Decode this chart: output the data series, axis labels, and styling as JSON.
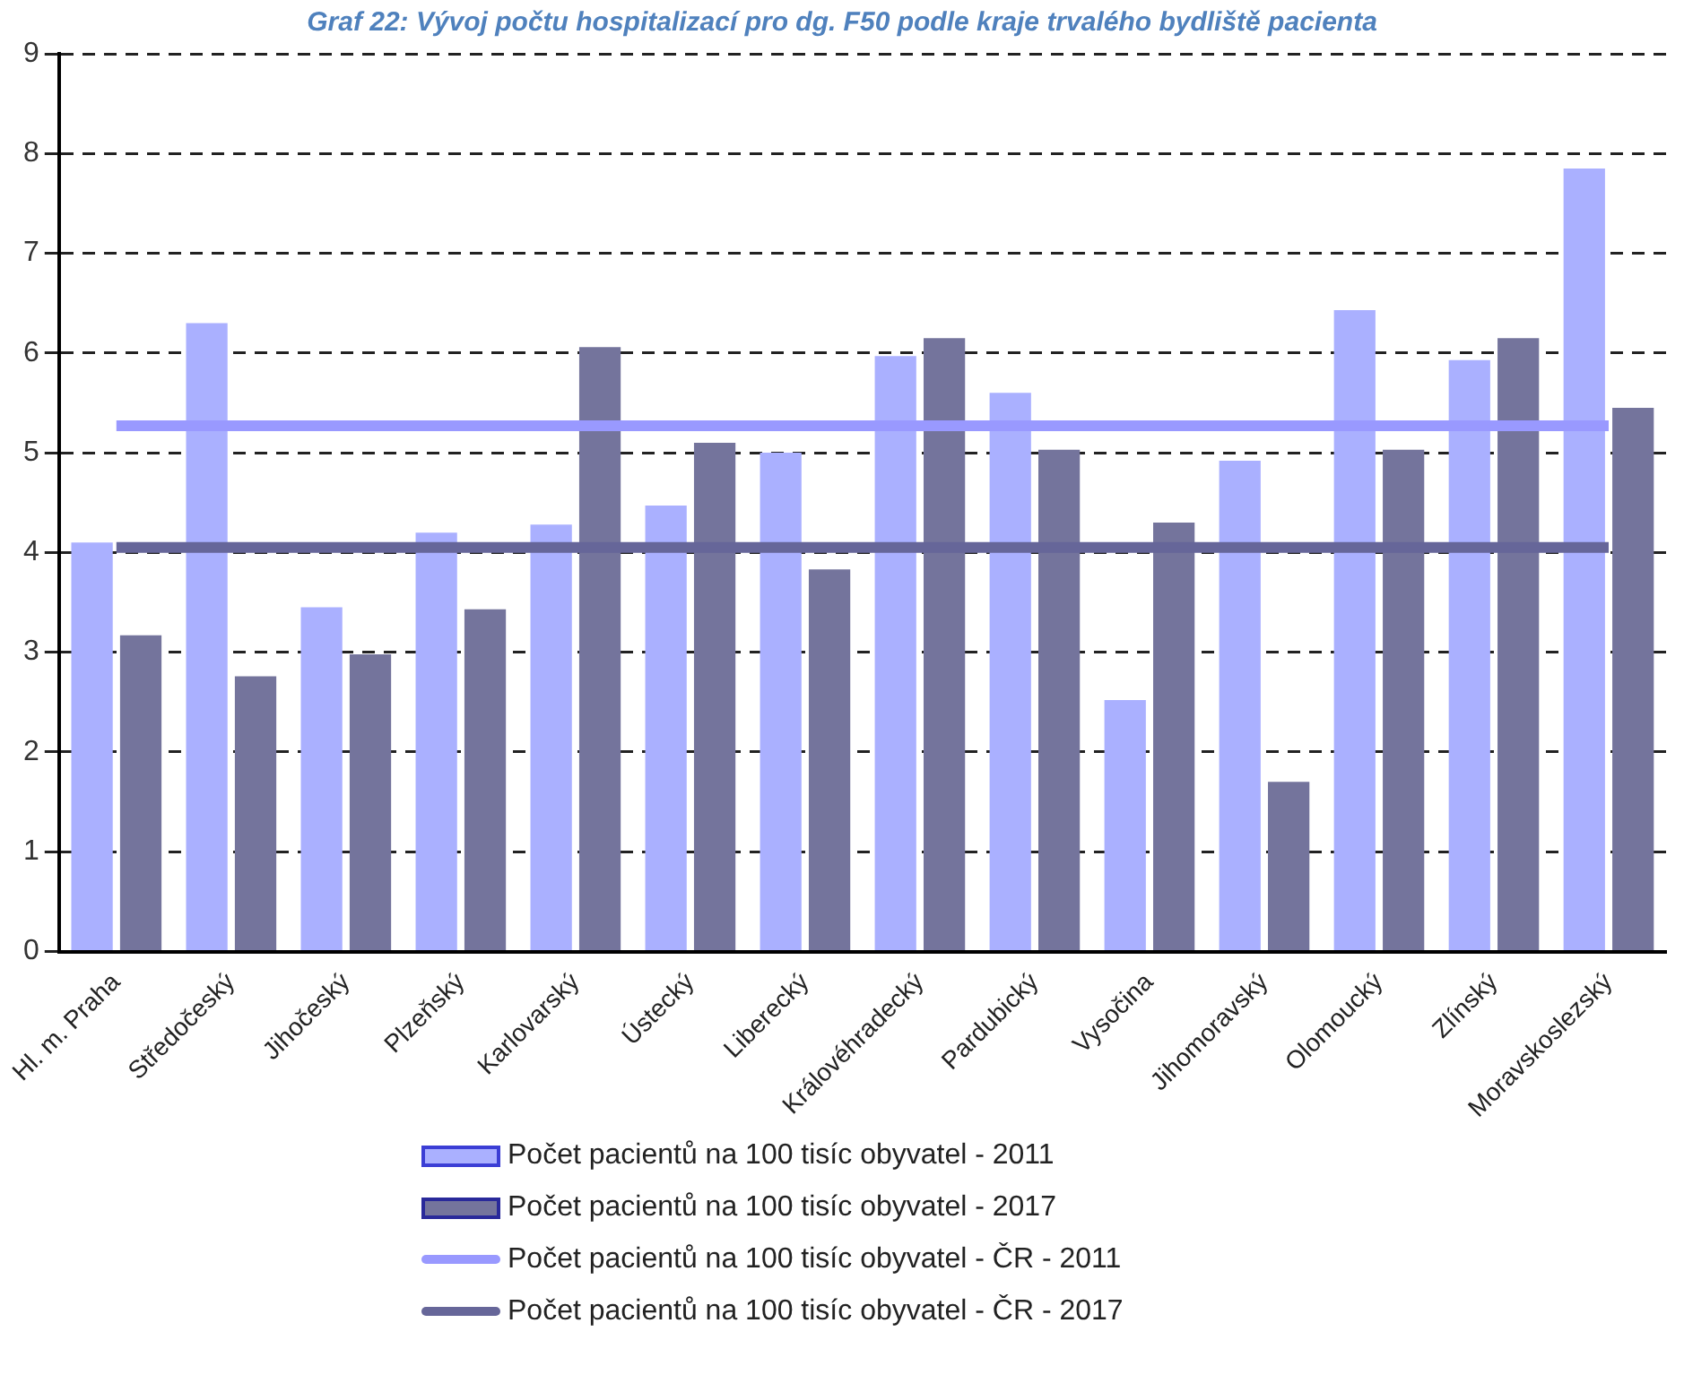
{
  "chart_data": {
    "type": "bar",
    "title": "Graf 22: Vývoj počtu hospitalizací pro dg. F50 podle kraje trvalého bydliště pacienta",
    "categories": [
      "Hl. m. Praha",
      "Středočeský",
      "Jihočeský",
      "Plzeňský",
      "Karlovarský",
      "Ústecký",
      "Liberecký",
      "Královéhradecký",
      "Pardubický",
      "Vysočina",
      "Jihomoravský",
      "Olomoucký",
      "Zlínský",
      "Moravskoslezský"
    ],
    "series": [
      {
        "name": "Počet pacientů na 100 tisíc obyvatel - 2011",
        "color": "#aab0ff",
        "values": [
          4.1,
          6.3,
          3.45,
          4.2,
          4.28,
          4.47,
          5.0,
          5.97,
          5.6,
          2.52,
          4.92,
          6.43,
          5.93,
          7.85
        ]
      },
      {
        "name": "Počet pacientů na 100 tisíc obyvatel - 2017",
        "color": "#74749c",
        "values": [
          3.17,
          2.76,
          2.98,
          3.43,
          6.06,
          5.1,
          3.83,
          6.15,
          5.03,
          4.3,
          1.7,
          5.03,
          6.15,
          5.45
        ]
      },
      {
        "name": "Počet pacientů na 100 tisíc obyvatel - ČR - 2011",
        "type": "line",
        "color": "#9999ff",
        "values": [
          5.27,
          5.27,
          5.27,
          5.27,
          5.27,
          5.27,
          5.27,
          5.27,
          5.27,
          5.27,
          5.27,
          5.27,
          5.27,
          5.27
        ]
      },
      {
        "name": "Počet pacientů na 100 tisíc obyvatel - ČR - 2017",
        "type": "line",
        "color": "#666699",
        "values": [
          4.05,
          4.05,
          4.05,
          4.05,
          4.05,
          4.05,
          4.05,
          4.05,
          4.05,
          4.05,
          4.05,
          4.05,
          4.05,
          4.05
        ]
      }
    ],
    "ylim": [
      0,
      9
    ],
    "yticks": [
      0,
      1,
      2,
      3,
      4,
      5,
      6,
      7,
      8,
      9
    ],
    "grid": "y",
    "legend": "bottom",
    "marker": "none",
    "line_style": "solid"
  }
}
